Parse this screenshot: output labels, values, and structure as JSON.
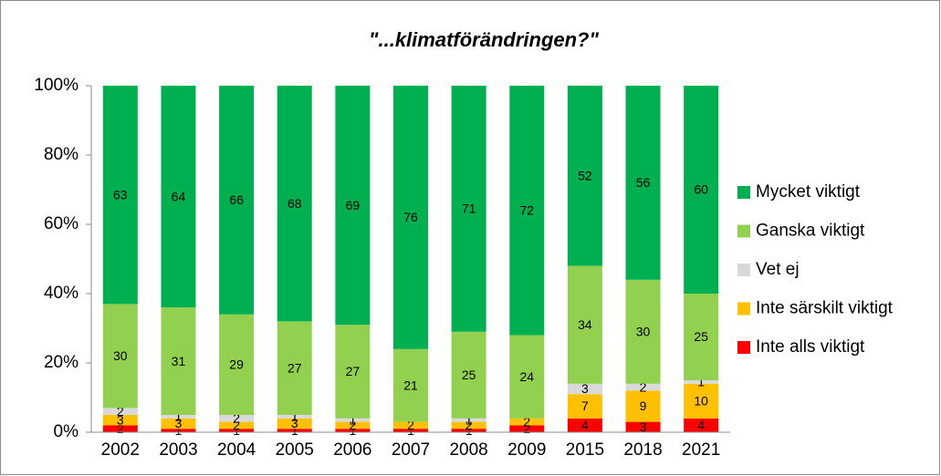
{
  "chart_data": {
    "type": "stacked_bar_percent",
    "title": "\"...klimatförändringen?\"",
    "categories": [
      "2002",
      "2003",
      "2004",
      "2005",
      "2006",
      "2007",
      "2008",
      "2009",
      "2015",
      "2018",
      "2021"
    ],
    "series": [
      {
        "name": "Inte alls viktigt",
        "color": "#ff0000",
        "values": [
          2,
          1,
          1,
          1,
          1,
          1,
          1,
          2,
          4,
          3,
          4
        ]
      },
      {
        "name": "Inte särskilt viktigt",
        "color": "#ffc000",
        "values": [
          3,
          3,
          2,
          3,
          2,
          2,
          2,
          2,
          7,
          9,
          10
        ]
      },
      {
        "name": "Vet ej",
        "color": "#d9d9d9",
        "values": [
          2,
          1,
          2,
          1,
          1,
          0,
          1,
          0,
          3,
          2,
          1
        ]
      },
      {
        "name": "Ganska viktigt",
        "color": "#92d050",
        "values": [
          30,
          31,
          29,
          27,
          27,
          21,
          25,
          24,
          34,
          30,
          25
        ]
      },
      {
        "name": "Mycket viktigt",
        "color": "#00b050",
        "values": [
          63,
          64,
          66,
          68,
          69,
          76,
          71,
          72,
          52,
          56,
          60
        ]
      }
    ],
    "ylim": [
      0,
      100
    ],
    "yticks": [
      {
        "value": 0,
        "label": "0%"
      },
      {
        "value": 20,
        "label": "20%"
      },
      {
        "value": 40,
        "label": "40%"
      },
      {
        "value": 60,
        "label": "60%"
      },
      {
        "value": 80,
        "label": "80%"
      },
      {
        "value": 100,
        "label": "100%"
      }
    ],
    "legend": "right"
  }
}
